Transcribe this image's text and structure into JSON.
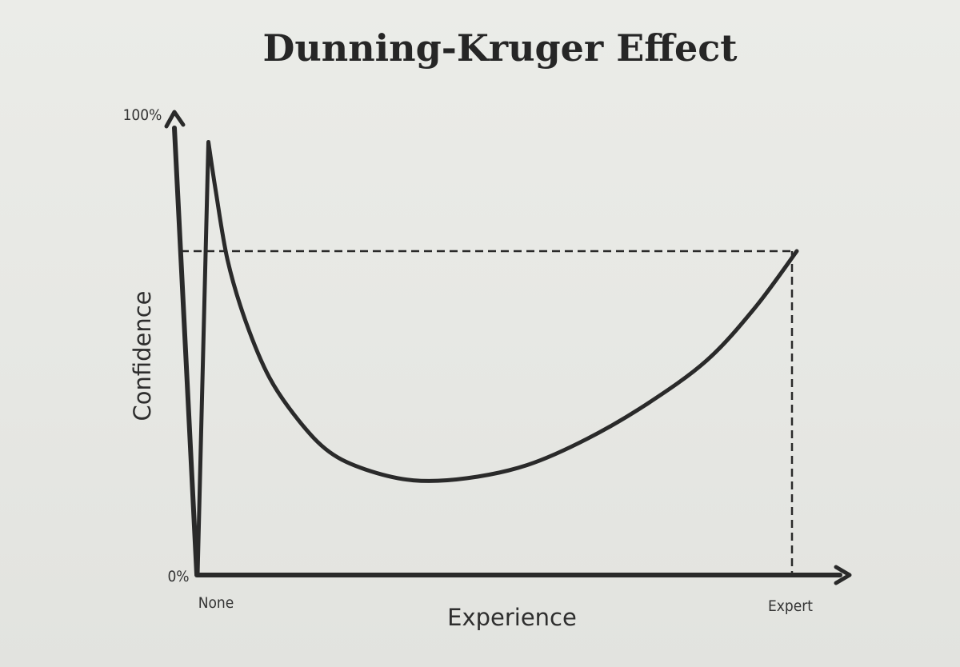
{
  "chart_data": {
    "type": "line",
    "title": "Dunning-Kruger Effect",
    "xlabel": "Experience",
    "ylabel": "Confidence",
    "x_ticks": [
      "None",
      "Expert"
    ],
    "y_ticks": [
      "0%",
      "100%"
    ],
    "xlim": [
      0,
      100
    ],
    "ylim": [
      0,
      100
    ],
    "grid": false,
    "series": [
      {
        "x": [
          0,
          1.8,
          3,
          5,
          8,
          12,
          17,
          22,
          28,
          36,
          45,
          55,
          65,
          75,
          85,
          93,
          100
        ],
        "y": [
          0,
          99,
          88,
          72,
          58,
          45,
          35,
          28,
          24,
          21.5,
          22,
          25,
          31,
          39,
          49,
          61,
          74
        ]
      }
    ],
    "reference_lines": {
      "horizontal_y": 74,
      "vertical_x": 100,
      "style": "dashed"
    }
  }
}
